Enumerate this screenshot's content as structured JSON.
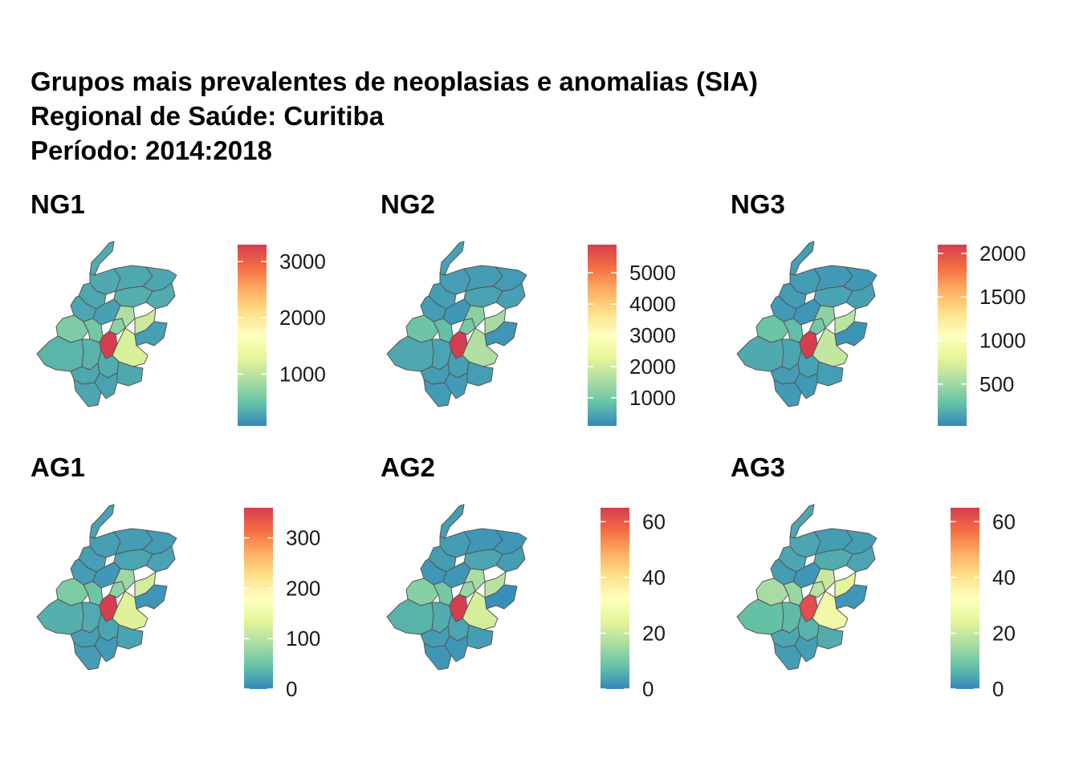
{
  "title": {
    "line1": "Grupos mais prevalentes de neoplasias e anomalias (SIA)",
    "line2": "Regional de Saúde: Curitiba",
    "line3": "Período: 2014:2018"
  },
  "colors": {
    "low": "#3288bd",
    "mid_low": "#66c2a5",
    "mid": "#abdda4",
    "mid2": "#e6f598",
    "center": "#ffffbf",
    "mid3": "#fee08b",
    "mid_high": "#fdae61",
    "high_mid": "#f46d43",
    "high": "#d53e4f",
    "border": "#555555"
  },
  "chart_data": [
    {
      "type": "heatmap",
      "title": "NG1",
      "legend_range": [
        80,
        3300
      ],
      "legend_ticks": [
        1000,
        2000,
        3000
      ],
      "region_values": [
        3300,
        320,
        310,
        300,
        290,
        350,
        330,
        300,
        280,
        620,
        560,
        700,
        900,
        1200,
        1100,
        400,
        380,
        330,
        300,
        290,
        280,
        260,
        250,
        240
      ]
    },
    {
      "type": "heatmap",
      "title": "NG2",
      "legend_range": [
        100,
        5900
      ],
      "legend_ticks": [
        1000,
        2000,
        3000,
        4000,
        5000
      ],
      "region_values": [
        5900,
        400,
        380,
        360,
        340,
        420,
        400,
        380,
        350,
        900,
        800,
        1000,
        1200,
        1600,
        1500,
        500,
        450,
        400,
        380,
        360,
        340,
        320,
        300,
        280
      ]
    },
    {
      "type": "heatmap",
      "title": "NG3",
      "legend_range": [
        20,
        2100
      ],
      "legend_ticks": [
        500,
        1000,
        1500,
        2000
      ],
      "region_values": [
        2100,
        120,
        110,
        100,
        90,
        140,
        130,
        110,
        100,
        300,
        260,
        330,
        420,
        650,
        600,
        170,
        150,
        140,
        120,
        110,
        100,
        90,
        80,
        70
      ]
    },
    {
      "type": "heatmap",
      "title": "AG1",
      "legend_range": [
        0,
        360
      ],
      "legend_ticks": [
        0,
        100,
        200,
        300
      ],
      "region_values": [
        360,
        20,
        18,
        16,
        15,
        22,
        20,
        18,
        16,
        60,
        50,
        70,
        80,
        130,
        120,
        30,
        26,
        22,
        20,
        18,
        16,
        14,
        12,
        10
      ]
    },
    {
      "type": "heatmap",
      "title": "AG2",
      "legend_range": [
        0,
        65
      ],
      "legend_ticks": [
        0,
        20,
        40,
        60
      ],
      "region_values": [
        65,
        3,
        3,
        2,
        2,
        4,
        3,
        3,
        2,
        12,
        10,
        14,
        16,
        22,
        18,
        6,
        5,
        4,
        3,
        3,
        2,
        2,
        2,
        1
      ]
    },
    {
      "type": "heatmap",
      "title": "AG3",
      "legend_range": [
        0,
        65
      ],
      "legend_ticks": [
        0,
        20,
        40,
        60
      ],
      "region_values": [
        62,
        4,
        4,
        3,
        3,
        5,
        4,
        4,
        3,
        16,
        14,
        18,
        20,
        28,
        24,
        8,
        7,
        6,
        5,
        4,
        3,
        3,
        2,
        2
      ]
    }
  ]
}
